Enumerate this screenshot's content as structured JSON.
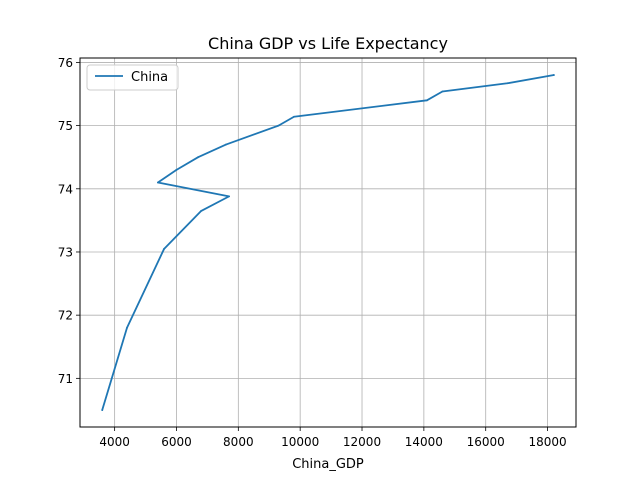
{
  "chart_data": {
    "type": "line",
    "title": "China GDP vs Life Expectancy",
    "xlabel": "China_GDP",
    "ylabel": "",
    "xlim": [
      2880,
      18920
    ],
    "ylim": [
      70.23,
      76.07
    ],
    "xticks": [
      4000,
      6000,
      8000,
      10000,
      12000,
      14000,
      16000,
      18000
    ],
    "yticks": [
      71,
      72,
      73,
      74,
      75,
      76
    ],
    "grid": true,
    "legend": {
      "placement": "top-left",
      "entries": [
        "China"
      ]
    },
    "series": [
      {
        "name": "China",
        "color": "#1f77b4",
        "points": [
          {
            "x": 3600,
            "y": 70.5
          },
          {
            "x": 4400,
            "y": 71.8
          },
          {
            "x": 5600,
            "y": 73.05
          },
          {
            "x": 6800,
            "y": 73.65
          },
          {
            "x": 7700,
            "y": 73.88
          },
          {
            "x": 5400,
            "y": 74.1
          },
          {
            "x": 6000,
            "y": 74.3
          },
          {
            "x": 6700,
            "y": 74.5
          },
          {
            "x": 7600,
            "y": 74.7
          },
          {
            "x": 9300,
            "y": 75.0
          },
          {
            "x": 9800,
            "y": 75.14
          },
          {
            "x": 14100,
            "y": 75.4
          },
          {
            "x": 14600,
            "y": 75.54
          },
          {
            "x": 16700,
            "y": 75.67
          },
          {
            "x": 18200,
            "y": 75.8
          }
        ]
      }
    ]
  }
}
